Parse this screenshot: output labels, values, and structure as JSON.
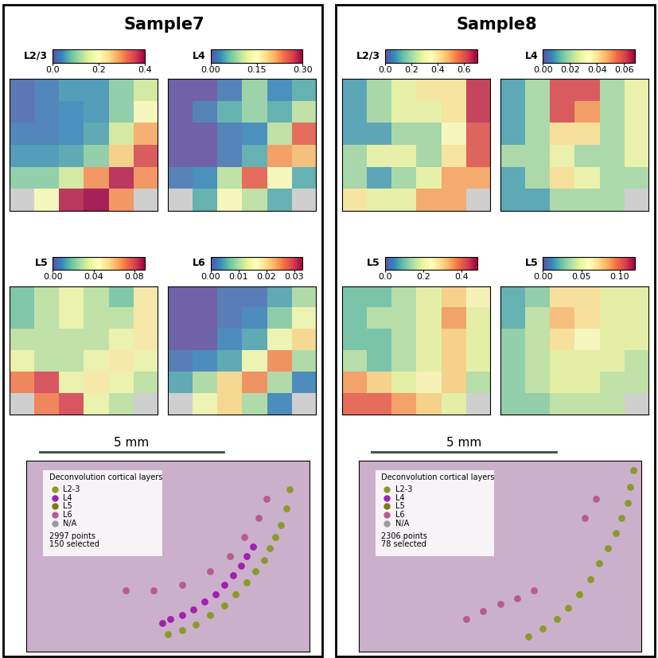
{
  "chart_data": {
    "type": "spatial_heatmap_figure",
    "xlim": [
      0,
      1
    ],
    "ylim": [
      0,
      1
    ],
    "tick_labels": false,
    "samples": [
      {
        "title": "Sample7",
        "heatmaps": [
          {
            "label": "L2/3",
            "range": [
              0.0,
              0.4
            ],
            "ticks": [
              0.0,
              0.2,
              0.4
            ],
            "cells": [
              [
                0.02,
                0.03,
                0.05,
                0.05,
                0.1,
                0.15
              ],
              [
                0.02,
                0.03,
                0.04,
                0.05,
                0.1,
                0.2
              ],
              [
                0.03,
                0.03,
                0.04,
                0.06,
                0.15,
                0.28
              ],
              [
                0.05,
                0.05,
                0.06,
                0.1,
                0.25,
                0.35
              ],
              [
                0.1,
                0.1,
                0.15,
                0.3,
                0.38,
                0.3
              ],
              [
                null,
                0.2,
                0.38,
                0.4,
                0.3,
                null
              ]
            ]
          },
          {
            "label": "L4",
            "range": [
              0.0,
              0.3
            ],
            "ticks": [
              {
                "value": 0.0,
                "label": "0.00"
              },
              0.15,
              {
                "value": 0.3,
                "label": "0.30"
              }
            ],
            "cells": [
              [
                0.0,
                0.0,
                0.02,
                0.08,
                0.03,
                0.05
              ],
              [
                0.0,
                0.02,
                0.05,
                0.08,
                0.05,
                0.1
              ],
              [
                0.0,
                0.0,
                0.02,
                0.03,
                0.1,
                0.25
              ],
              [
                0.0,
                0.0,
                0.02,
                0.05,
                0.22,
                0.2
              ],
              [
                0.02,
                0.03,
                0.1,
                0.25,
                0.15,
                0.05
              ],
              [
                null,
                0.05,
                0.15,
                0.1,
                0.05,
                null
              ]
            ]
          },
          {
            "label": "L5",
            "range": [
              0.0,
              0.09
            ],
            "ticks": [
              {
                "value": 0.0,
                "label": "0.00"
              },
              0.04,
              0.08
            ],
            "cells": [
              [
                0.02,
                0.03,
                0.04,
                0.03,
                0.02,
                0.05
              ],
              [
                0.02,
                0.03,
                0.04,
                0.03,
                0.03,
                0.05
              ],
              [
                0.03,
                0.03,
                0.03,
                0.03,
                0.04,
                0.05
              ],
              [
                0.04,
                0.03,
                0.03,
                0.04,
                0.05,
                0.04
              ],
              [
                0.07,
                0.08,
                0.04,
                0.05,
                0.04,
                0.03
              ],
              [
                null,
                0.07,
                0.08,
                0.04,
                0.03,
                null
              ]
            ]
          },
          {
            "label": "L6",
            "range": [
              0.0,
              0.033
            ],
            "ticks": [
              {
                "value": 0.0,
                "label": "0.00"
              },
              0.01,
              0.02,
              0.03
            ],
            "cells": [
              [
                0.0,
                0.0,
                0.002,
                0.002,
                0.005,
                0.01
              ],
              [
                0.0,
                0.0,
                0.002,
                0.003,
                0.008,
                0.015
              ],
              [
                0.0,
                0.0,
                0.003,
                0.005,
                0.015,
                0.02
              ],
              [
                0.002,
                0.003,
                0.005,
                0.015,
                0.025,
                0.01
              ],
              [
                0.005,
                0.01,
                0.02,
                0.025,
                0.01,
                0.003
              ],
              [
                null,
                0.015,
                0.02,
                0.01,
                0.003,
                null
              ]
            ]
          }
        ],
        "scale_bar": "5 mm",
        "selection": {
          "title": "Deconvolution cortical layers",
          "layers": [
            {
              "name": "L2-3",
              "color": "#8a9a2a"
            },
            {
              "name": "L4",
              "color": "#a020b0"
            },
            {
              "name": "L5",
              "color": "#7f7a10"
            },
            {
              "name": "L6",
              "color": "#b85a90"
            },
            {
              "name": "N/A",
              "color": "#9a9a9a"
            }
          ],
          "counts": [
            "2997 points",
            "150 selected"
          ],
          "spots": {
            "L2-3": [
              [
                0.93,
                0.85
              ],
              [
                0.92,
                0.75
              ],
              [
                0.9,
                0.66
              ],
              [
                0.88,
                0.6
              ],
              [
                0.86,
                0.54
              ],
              [
                0.84,
                0.48
              ],
              [
                0.81,
                0.42
              ],
              [
                0.78,
                0.36
              ],
              [
                0.74,
                0.3
              ],
              [
                0.7,
                0.24
              ],
              [
                0.65,
                0.19
              ],
              [
                0.6,
                0.14
              ],
              [
                0.55,
                0.11
              ],
              [
                0.5,
                0.09
              ]
            ],
            "L4": [
              [
                0.8,
                0.55
              ],
              [
                0.78,
                0.5
              ],
              [
                0.76,
                0.45
              ],
              [
                0.73,
                0.4
              ],
              [
                0.7,
                0.35
              ],
              [
                0.67,
                0.3
              ],
              [
                0.63,
                0.26
              ],
              [
                0.59,
                0.22
              ],
              [
                0.55,
                0.19
              ],
              [
                0.51,
                0.17
              ],
              [
                0.48,
                0.15
              ]
            ],
            "L6": [
              [
                0.85,
                0.8
              ],
              [
                0.82,
                0.7
              ],
              [
                0.77,
                0.6
              ],
              [
                0.72,
                0.5
              ],
              [
                0.65,
                0.42
              ],
              [
                0.55,
                0.35
              ],
              [
                0.45,
                0.32
              ],
              [
                0.35,
                0.32
              ]
            ]
          }
        }
      },
      {
        "title": "Sample8",
        "heatmaps": [
          {
            "label": "L2/3",
            "range": [
              0.0,
              0.7
            ],
            "ticks": [
              0.0,
              0.2,
              0.4,
              0.6
            ],
            "cells": [
              [
                0.1,
                0.2,
                0.3,
                0.4,
                0.4,
                0.65
              ],
              [
                0.1,
                0.2,
                0.3,
                0.3,
                0.4,
                0.65
              ],
              [
                0.1,
                0.1,
                0.2,
                0.2,
                0.35,
                0.6
              ],
              [
                0.2,
                0.3,
                0.3,
                0.2,
                0.4,
                0.6
              ],
              [
                0.2,
                0.1,
                0.2,
                0.3,
                0.5,
                0.5
              ],
              [
                0.4,
                0.3,
                0.3,
                0.5,
                0.5,
                null
              ]
            ]
          },
          {
            "label": "L4",
            "range": [
              0.0,
              0.068
            ],
            "ticks": [
              {
                "value": 0.0,
                "label": "0.00"
              },
              0.02,
              0.04,
              0.06
            ],
            "cells": [
              [
                0.01,
                0.02,
                0.06,
                0.06,
                0.02,
                0.03
              ],
              [
                0.01,
                0.02,
                0.06,
                0.05,
                0.02,
                0.03
              ],
              [
                0.01,
                0.02,
                0.04,
                0.04,
                0.02,
                0.03
              ],
              [
                0.02,
                0.02,
                0.03,
                0.02,
                0.02,
                0.03
              ],
              [
                0.01,
                0.02,
                0.04,
                0.03,
                0.02,
                0.02
              ],
              [
                0.01,
                0.01,
                0.02,
                0.02,
                0.02,
                null
              ]
            ]
          },
          {
            "label": "L5",
            "range": [
              0.0,
              0.48
            ],
            "ticks": [
              0.0,
              0.2,
              0.4
            ],
            "cells": [
              [
                0.1,
                0.1,
                0.15,
                0.2,
                0.3,
                0.25
              ],
              [
                0.1,
                0.15,
                0.15,
                0.2,
                0.35,
                0.2
              ],
              [
                0.1,
                0.1,
                0.15,
                0.2,
                0.3,
                0.2
              ],
              [
                0.15,
                0.1,
                0.15,
                0.2,
                0.3,
                0.2
              ],
              [
                0.35,
                0.3,
                0.2,
                0.25,
                0.3,
                0.15
              ],
              [
                0.4,
                0.4,
                0.35,
                0.3,
                0.2,
                null
              ]
            ]
          },
          {
            "label": "L5",
            "range": [
              0.0,
              0.12
            ],
            "ticks": [
              {
                "value": 0.0,
                "label": "0.00"
              },
              0.05,
              {
                "value": 0.1,
                "label": "0.10"
              }
            ],
            "cells": [
              [
                0.02,
                0.03,
                0.07,
                0.07,
                0.05,
                0.05
              ],
              [
                0.02,
                0.04,
                0.08,
                0.07,
                0.05,
                0.05
              ],
              [
                0.03,
                0.04,
                0.07,
                0.06,
                0.05,
                0.05
              ],
              [
                0.03,
                0.04,
                0.05,
                0.05,
                0.05,
                0.04
              ],
              [
                0.03,
                0.04,
                0.05,
                0.05,
                0.04,
                0.04
              ],
              [
                0.03,
                0.03,
                0.04,
                0.04,
                0.04,
                null
              ]
            ]
          }
        ],
        "scale_bar": "5 mm",
        "selection": {
          "title": "Deconvolution cortical layers",
          "layers": [
            {
              "name": "L2-3",
              "color": "#8a9a2a"
            },
            {
              "name": "L4",
              "color": "#a020b0"
            },
            {
              "name": "L5",
              "color": "#7f7a10"
            },
            {
              "name": "L6",
              "color": "#b85a90"
            },
            {
              "name": "N/A",
              "color": "#9a9a9a"
            }
          ],
          "counts": [
            "2306 points",
            "78 selected"
          ],
          "spots": {
            "L2-3": [
              [
                0.97,
                0.95
              ],
              [
                0.96,
                0.86
              ],
              [
                0.95,
                0.78
              ],
              [
                0.93,
                0.7
              ],
              [
                0.91,
                0.62
              ],
              [
                0.88,
                0.54
              ],
              [
                0.85,
                0.46
              ],
              [
                0.82,
                0.38
              ],
              [
                0.78,
                0.3
              ],
              [
                0.74,
                0.23
              ],
              [
                0.7,
                0.17
              ],
              [
                0.65,
                0.12
              ],
              [
                0.6,
                0.08
              ]
            ],
            "L6": [
              [
                0.84,
                0.8
              ],
              [
                0.8,
                0.7
              ],
              [
                0.62,
                0.32
              ],
              [
                0.56,
                0.28
              ],
              [
                0.5,
                0.25
              ],
              [
                0.44,
                0.21
              ],
              [
                0.38,
                0.17
              ]
            ]
          }
        }
      }
    ]
  }
}
